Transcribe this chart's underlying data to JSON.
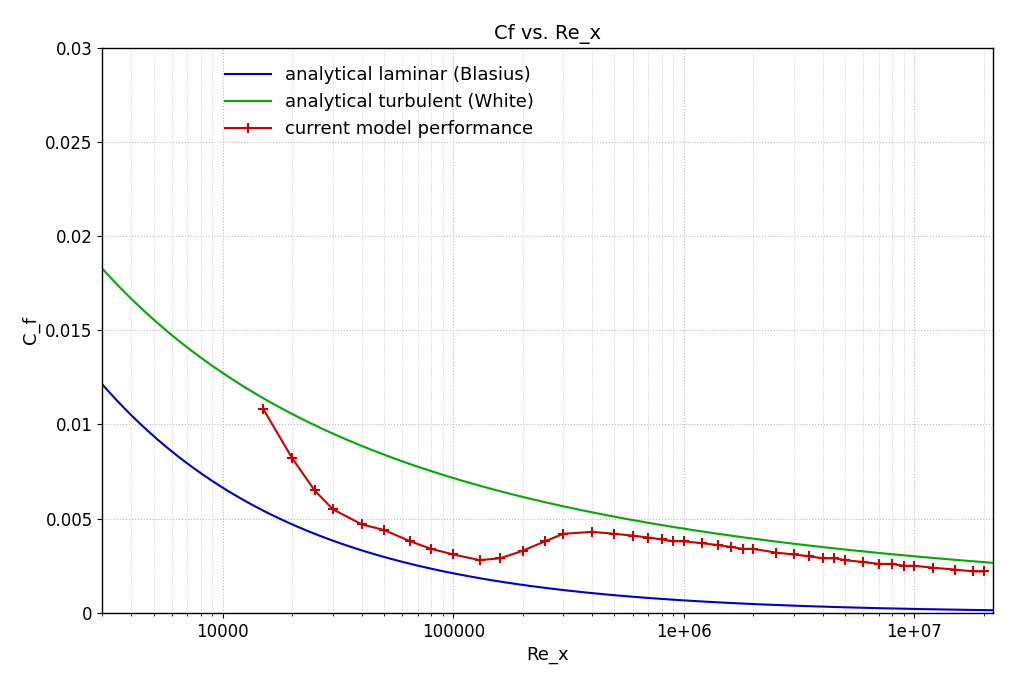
{
  "title": "Cf vs. Re_x",
  "xlabel": "Re_x",
  "ylabel": "C_f",
  "xlim": [
    3000,
    22000000.0
  ],
  "ylim": [
    0,
    0.03
  ],
  "yticks": [
    0,
    0.005,
    0.01,
    0.015,
    0.02,
    0.025,
    0.03
  ],
  "background_color": "#ffffff",
  "grid_color": "#bbbbbb",
  "blasius_color": "#0000cc",
  "white_color": "#00aa00",
  "model_color": "#cc0000",
  "legend_labels": [
    "analytical laminar (Blasius)",
    "analytical turbulent (White)",
    "current model performance"
  ],
  "title_fontsize": 14,
  "label_fontsize": 13,
  "tick_fontsize": 12,
  "legend_fontsize": 13,
  "re_model": [
    15000,
    20000,
    25000,
    30000,
    40000,
    50000,
    65000,
    80000,
    100000,
    130000,
    160000,
    200000,
    250000,
    300000,
    400000,
    500000,
    600000,
    700000,
    800000,
    900000,
    1000000,
    1200000,
    1400000,
    1600000,
    1800000,
    2000000,
    2500000,
    3000000,
    3500000,
    4000000,
    4500000,
    5000000,
    6000000,
    7000000,
    8000000,
    9000000,
    10000000,
    12000000,
    15000000,
    18000000,
    20000000
  ],
  "cf_model": [
    0.0108,
    0.0082,
    0.0065,
    0.0055,
    0.0047,
    0.0044,
    0.0038,
    0.0034,
    0.0031,
    0.0028,
    0.0029,
    0.0033,
    0.0038,
    0.0042,
    0.0043,
    0.0042,
    0.0041,
    0.004,
    0.0039,
    0.0038,
    0.0038,
    0.0037,
    0.0036,
    0.0035,
    0.0034,
    0.0034,
    0.0032,
    0.0031,
    0.003,
    0.0029,
    0.0029,
    0.0028,
    0.0027,
    0.0026,
    0.0026,
    0.0025,
    0.0025,
    0.0024,
    0.0023,
    0.0022,
    0.0022
  ]
}
